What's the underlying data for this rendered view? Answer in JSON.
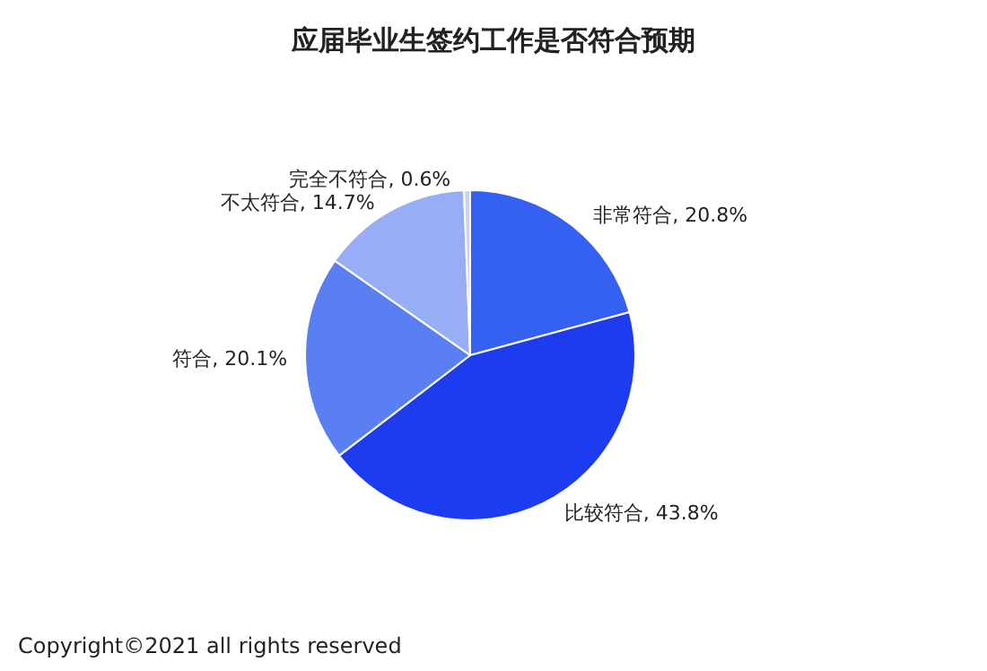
{
  "chart_data": {
    "type": "pie",
    "title": "应届毕业生签约工作是否符合预期",
    "categories": [
      "非常符合",
      "比较符合",
      "符合",
      "不太符合",
      "完全不符合"
    ],
    "values": [
      20.8,
      43.8,
      20.1,
      14.7,
      0.6
    ],
    "value_labels": [
      "20.8%",
      "43.8%",
      "20.1%",
      "14.7%",
      "0.6%"
    ],
    "colors": [
      "#3461f2",
      "#1d3cef",
      "#5a7ff2",
      "#97adf5",
      "#c9d2f2"
    ],
    "legend": false,
    "annotations": [
      "Copyright©2021 all rights reserved"
    ]
  }
}
